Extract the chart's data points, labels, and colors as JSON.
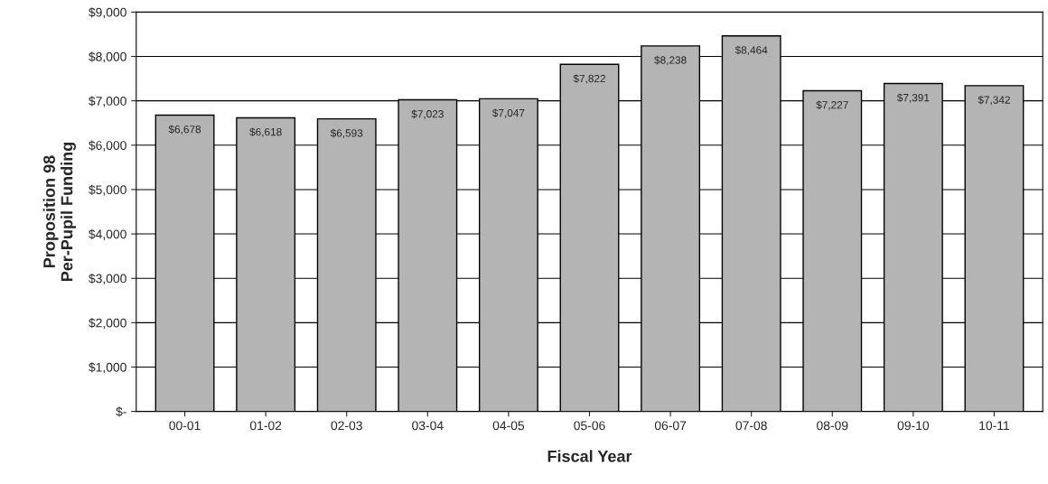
{
  "chart_data": {
    "type": "bar",
    "xlabel": "Fiscal Year",
    "ylabel": "Proposition 98\nPer-Pupil Funding",
    "categories": [
      "00-01",
      "01-02",
      "02-03",
      "03-04",
      "04-05",
      "05-06",
      "06-07",
      "07-08",
      "08-09",
      "09-10",
      "10-11"
    ],
    "values": [
      6678,
      6618,
      6593,
      7023,
      7047,
      7822,
      8238,
      8464,
      7227,
      7391,
      7342
    ],
    "value_labels": [
      "$6,678",
      "$6,618",
      "$6,593",
      "$7,023",
      "$7,047",
      "$7,822",
      "$8,238",
      "$8,464",
      "$7,227",
      "$7,391",
      "$7,342"
    ],
    "color": "#b4b4b4",
    "ylim": [
      0,
      9000
    ],
    "yticks": [
      {
        "value": 0,
        "label": "$-"
      },
      {
        "value": 1000,
        "label": "$1,000"
      },
      {
        "value": 2000,
        "label": "$2,000"
      },
      {
        "value": 3000,
        "label": "$3,000"
      },
      {
        "value": 4000,
        "label": "$4,000"
      },
      {
        "value": 5000,
        "label": "$5,000"
      },
      {
        "value": 6000,
        "label": "$6,000"
      },
      {
        "value": 7000,
        "label": "$7,000"
      },
      {
        "value": 8000,
        "label": "$8,000"
      },
      {
        "value": 9000,
        "label": "$9,000"
      }
    ],
    "grid": "y"
  }
}
